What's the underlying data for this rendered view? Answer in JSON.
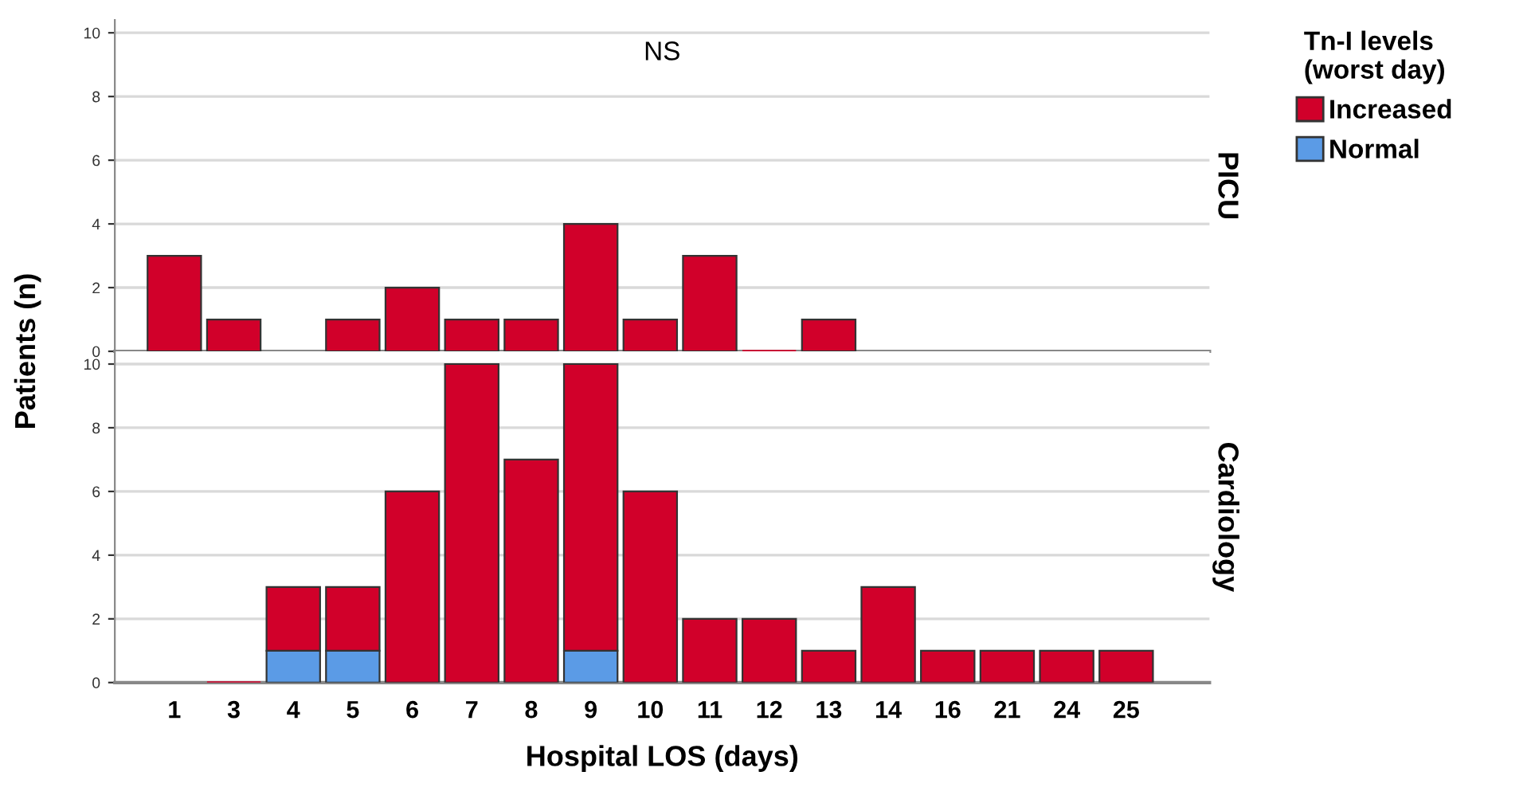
{
  "chart_data": [
    {
      "type": "bar",
      "title": "PICU",
      "ylabel": "Patients (n)",
      "legend_title": "Tn-I levels\n(worst day)",
      "legend": "top right",
      "stacked": true,
      "grid": "y",
      "tick_labels": "y",
      "annotations": [
        "NS"
      ],
      "categories": [
        "1",
        "3",
        "4",
        "5",
        "6",
        "7",
        "8",
        "9",
        "10",
        "11",
        "12",
        "13",
        "14",
        "16",
        "21",
        "24",
        "25"
      ],
      "ylim": [
        0,
        10.4
      ],
      "yticks": [
        0,
        2,
        4,
        6,
        8,
        10
      ],
      "series": [
        {
          "name": "Normal",
          "color": "#5b9be6",
          "values": [
            null,
            null,
            null,
            null,
            null,
            null,
            null,
            null,
            null,
            null,
            null,
            null,
            null,
            null,
            null,
            null,
            null
          ]
        },
        {
          "name": "Increased",
          "color": "#d1002a",
          "values": [
            3,
            1,
            null,
            1,
            2,
            1,
            1,
            4,
            1,
            3,
            0,
            1,
            null,
            null,
            null,
            null,
            null
          ]
        }
      ]
    },
    {
      "type": "bar",
      "title": "Cardiology",
      "xlabel": "Hospital LOS (days)",
      "stacked": true,
      "grid": "y",
      "categories": [
        "1",
        "3",
        "4",
        "5",
        "6",
        "7",
        "8",
        "9",
        "10",
        "11",
        "12",
        "13",
        "14",
        "16",
        "21",
        "24",
        "25"
      ],
      "ylim": [
        0,
        10.4
      ],
      "yticks": [
        0,
        2,
        4,
        6,
        8,
        10
      ],
      "series": [
        {
          "color": "#5b9be6",
          "values": [
            null,
            null,
            1,
            1,
            null,
            null,
            null,
            1,
            null,
            null,
            null,
            null,
            null,
            null,
            null,
            null,
            null
          ]
        },
        {
          "color": "#d1002a",
          "values": [
            null,
            0,
            2,
            2,
            6,
            10,
            7,
            9,
            6,
            2,
            2,
            1,
            3,
            1,
            1,
            1,
            1
          ]
        }
      ]
    }
  ]
}
